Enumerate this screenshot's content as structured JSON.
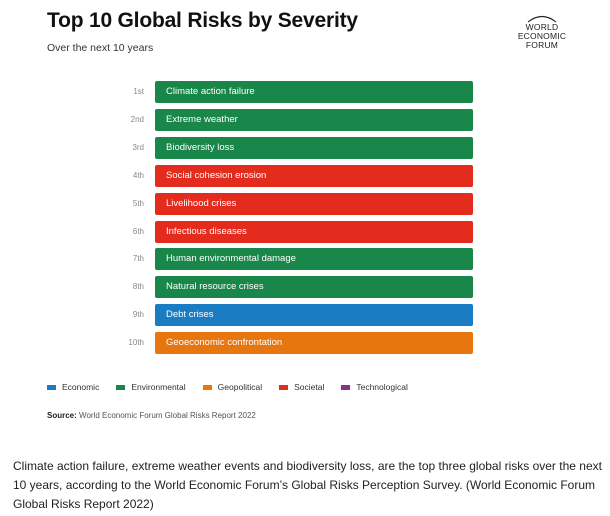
{
  "chart_data": {
    "type": "bar",
    "title": "Top 10 Global Risks by Severity",
    "subtitle": "Over the next 10 years",
    "ranks": [
      "1st",
      "2nd",
      "3rd",
      "4th",
      "5th",
      "6th",
      "7th",
      "8th",
      "9th",
      "10th"
    ],
    "categories": [
      "Climate action failure",
      "Extreme weather",
      "Biodiversity loss",
      "Social cohesion erosion",
      "Livelihood crises",
      "Infectious diseases",
      "Human environmental damage",
      "Natural resource crises",
      "Debt crises",
      "Geoeconomic confrontation"
    ],
    "risk_types": [
      "Environmental",
      "Environmental",
      "Environmental",
      "Societal",
      "Societal",
      "Societal",
      "Environmental",
      "Environmental",
      "Economic",
      "Geopolitical"
    ],
    "legend": [
      {
        "name": "Economic",
        "color": "#1a7dc4"
      },
      {
        "name": "Environmental",
        "color": "#19864a"
      },
      {
        "name": "Geopolitical",
        "color": "#e8760f"
      },
      {
        "name": "Societal",
        "color": "#e32b1e"
      },
      {
        "name": "Technological",
        "color": "#8c2f86"
      }
    ],
    "legend_placement": "bottom-left",
    "grid": false
  },
  "logo": {
    "line1": "WORLD",
    "line2": "ECONOMIC",
    "line3": "FORUM"
  },
  "source": {
    "label": "Source:",
    "text": "World Economic Forum Global Risks Report 2022"
  },
  "caption": "Climate action failure, extreme weather events and biodiversity loss, are the top three global risks over the next 10 years, according to the World Economic Forum’s Global Risks Perception Survey. (World Economic Forum Global Risks Report 2022)"
}
